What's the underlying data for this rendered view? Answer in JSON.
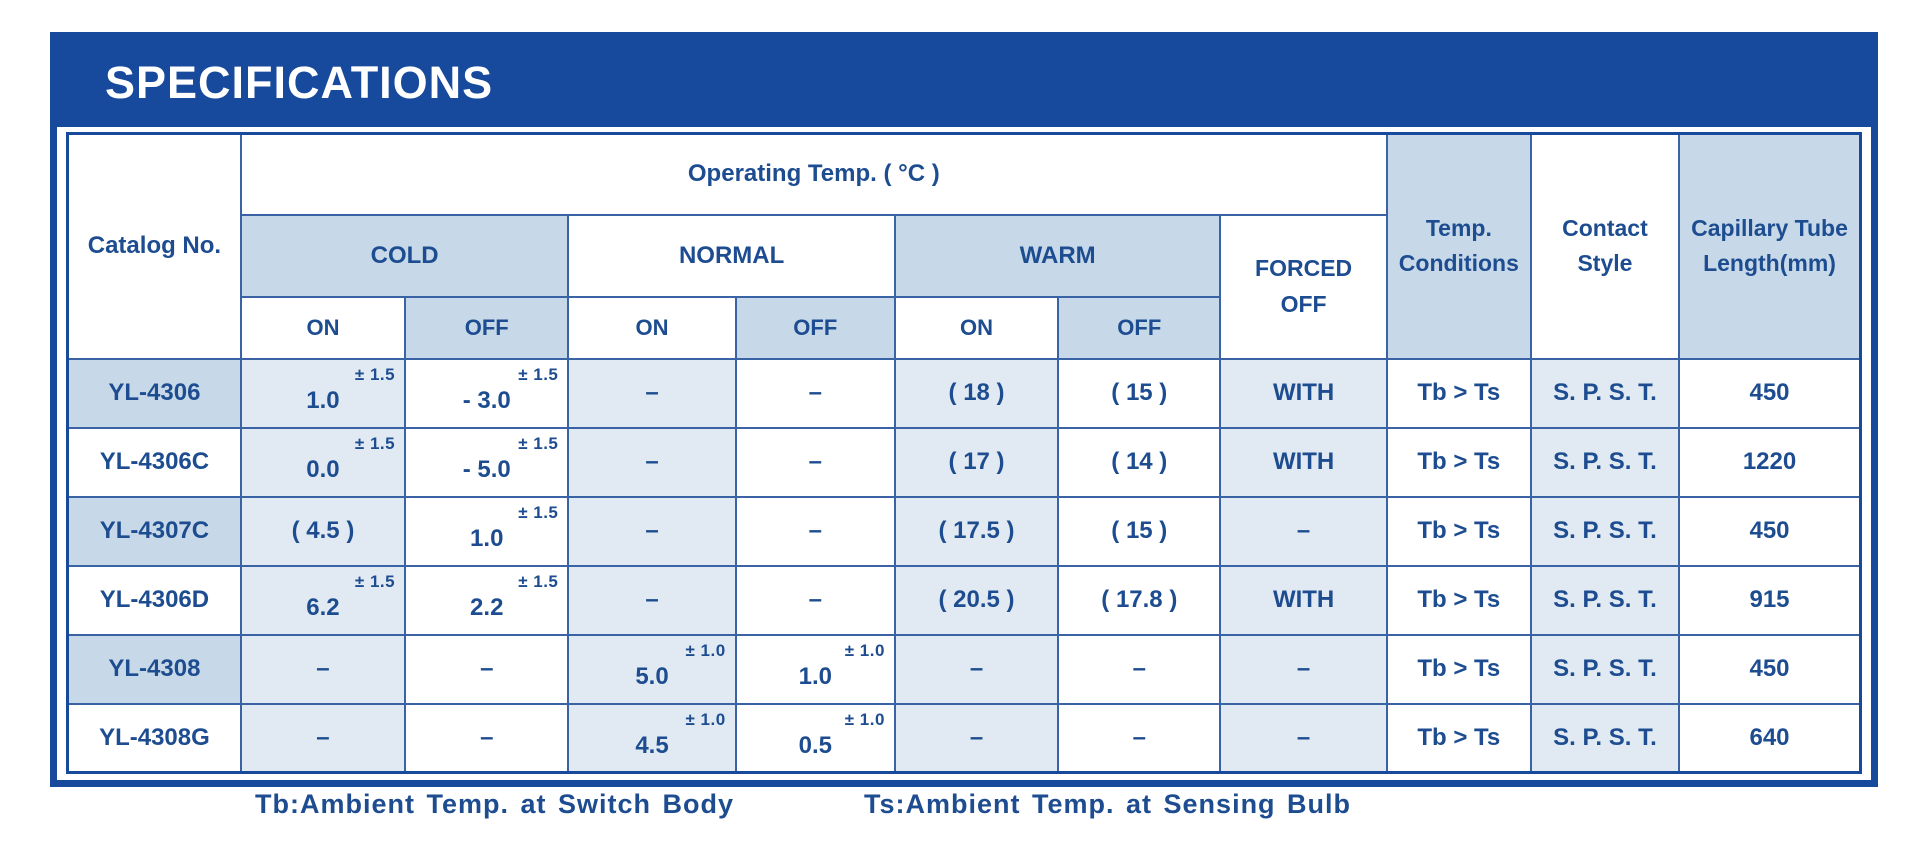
{
  "title": "SPECIFICATIONS",
  "colors": {
    "banner": "#17499C",
    "grid": "#3A63A5",
    "tint_header": "#C7D9E8",
    "tint_cell": "#E1EAF3",
    "text": "#1D4D90",
    "title_text": "#FFFFFF"
  },
  "table": {
    "corner_header": "Catalog No.",
    "group_header": "Operating Temp. ( °C )",
    "zone_cold": "COLD",
    "zone_normal": "NORMAL",
    "zone_warm": "WARM",
    "on_label": "ON",
    "off_label": "OFF",
    "forced_header": "FORCED\nOFF",
    "temp_conditions_header": "Temp.\nConditions",
    "contact_style_header": "Contact\nStyle",
    "capillary_header": "Capillary Tube\nLength(mm)",
    "rows": [
      {
        "catalog": "YL-4306",
        "cold_on": {
          "v": "1.0",
          "tol": "± 1.5"
        },
        "cold_off": {
          "v": "- 3.0",
          "tol": "± 1.5"
        },
        "normal_on": "–",
        "normal_off": "–",
        "warm_on": "( 18 )",
        "warm_off": "( 15 )",
        "forced": "WITH",
        "temp": "Tb > Ts",
        "contact": "S. P. S. T.",
        "capillary": "450"
      },
      {
        "catalog": "YL-4306C",
        "cold_on": {
          "v": "0.0",
          "tol": "± 1.5"
        },
        "cold_off": {
          "v": "- 5.0",
          "tol": "± 1.5"
        },
        "normal_on": "–",
        "normal_off": "–",
        "warm_on": "( 17 )",
        "warm_off": "( 14 )",
        "forced": "WITH",
        "temp": "Tb > Ts",
        "contact": "S. P. S. T.",
        "capillary": "1220"
      },
      {
        "catalog": "YL-4307C",
        "cold_on": "( 4.5 )",
        "cold_off": {
          "v": "1.0",
          "tol": "± 1.5"
        },
        "normal_on": "–",
        "normal_off": "–",
        "warm_on": "( 17.5 )",
        "warm_off": "( 15 )",
        "forced": "–",
        "temp": "Tb > Ts",
        "contact": "S. P. S. T.",
        "capillary": "450"
      },
      {
        "catalog": "YL-4306D",
        "cold_on": {
          "v": "6.2",
          "tol": "± 1.5"
        },
        "cold_off": {
          "v": "2.2",
          "tol": "± 1.5"
        },
        "normal_on": "–",
        "normal_off": "–",
        "warm_on": "( 20.5 )",
        "warm_off": "( 17.8 )",
        "forced": "WITH",
        "temp": "Tb > Ts",
        "contact": "S. P. S. T.",
        "capillary": "915"
      },
      {
        "catalog": "YL-4308",
        "cold_on": "–",
        "cold_off": "–",
        "normal_on": {
          "v": "5.0",
          "tol": "± 1.0"
        },
        "normal_off": {
          "v": "1.0",
          "tol": "± 1.0"
        },
        "warm_on": "–",
        "warm_off": "–",
        "forced": "–",
        "temp": "Tb > Ts",
        "contact": "S. P. S. T.",
        "capillary": "450"
      },
      {
        "catalog": "YL-4308G",
        "cold_on": "–",
        "cold_off": "–",
        "normal_on": {
          "v": "4.5",
          "tol": "± 1.0"
        },
        "normal_off": {
          "v": "0.5",
          "tol": "± 1.0"
        },
        "warm_on": "–",
        "warm_off": "–",
        "forced": "–",
        "temp": "Tb > Ts",
        "contact": "S. P. S. T.",
        "capillary": "640"
      }
    ]
  },
  "footnotes": [
    "Tb:Ambient Temp. at Switch Body",
    "Ts:Ambient Temp. at Sensing Bulb"
  ]
}
